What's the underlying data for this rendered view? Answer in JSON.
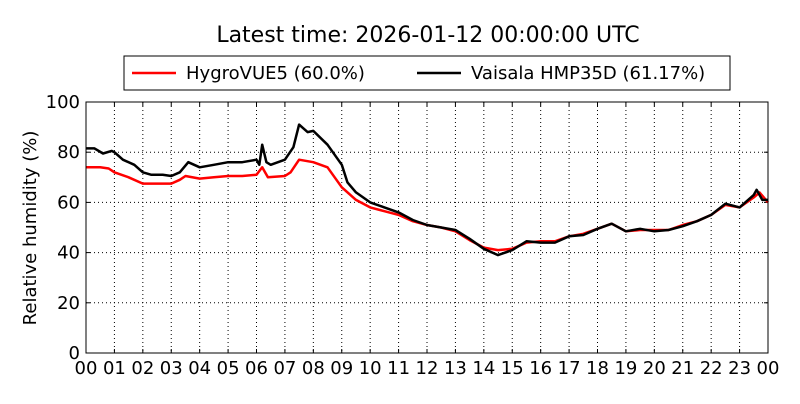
{
  "chart_data": {
    "type": "line",
    "title": "Latest time: 2026-01-12 00:00:00 UTC",
    "xlabel": "",
    "ylabel": "Relative humidity (%)",
    "xlim": [
      0,
      24
    ],
    "ylim": [
      0,
      100
    ],
    "grid": true,
    "legend_placement": "top-center",
    "x_tick_values": [
      0,
      1,
      2,
      3,
      4,
      5,
      6,
      7,
      8,
      9,
      10,
      11,
      12,
      13,
      14,
      15,
      16,
      17,
      18,
      19,
      20,
      21,
      22,
      23,
      24
    ],
    "x_tick_labels": [
      "00",
      "01",
      "02",
      "03",
      "04",
      "05",
      "06",
      "07",
      "08",
      "09",
      "10",
      "11",
      "12",
      "13",
      "14",
      "15",
      "16",
      "17",
      "18",
      "19",
      "20",
      "21",
      "22",
      "23",
      "00"
    ],
    "y_ticks": [
      0,
      20,
      40,
      60,
      80,
      100
    ],
    "series": [
      {
        "name": "HygroVUE5 (60.0%)",
        "color": "#ff0000",
        "x": [
          0,
          0.5,
          0.8,
          1,
          1.5,
          2,
          2.5,
          3,
          3.3,
          3.5,
          4,
          4.5,
          5,
          5.5,
          6,
          6.2,
          6.4,
          7,
          7.2,
          7.5,
          8,
          8.5,
          9,
          9.5,
          10,
          10.5,
          11,
          11.5,
          12,
          12.5,
          13,
          13.5,
          14,
          14.5,
          15,
          15.5,
          16,
          16.5,
          17,
          17.5,
          18,
          18.5,
          19,
          19.5,
          20,
          20.5,
          21,
          21.5,
          22,
          22.5,
          23,
          23.5,
          23.7,
          24
        ],
        "y": [
          74,
          74,
          73.5,
          72,
          70,
          67.5,
          67.5,
          67.5,
          69,
          70.5,
          69.5,
          70,
          70.5,
          70.5,
          71,
          74,
          70,
          70.5,
          72,
          77,
          76,
          74,
          66,
          61,
          58,
          56.5,
          55,
          52.5,
          51,
          50,
          48.5,
          45,
          42,
          41,
          41.5,
          44,
          44.5,
          44.5,
          46.5,
          47.5,
          49.5,
          51.5,
          48.5,
          49,
          49,
          49,
          51,
          52.5,
          55,
          59,
          58,
          62,
          64,
          60
        ]
      },
      {
        "name": "Vaisala HMP35D (61.17%)",
        "color": "#000000",
        "x": [
          0,
          0.3,
          0.6,
          0.9,
          1,
          1.3,
          1.7,
          2,
          2.3,
          2.7,
          3,
          3.3,
          3.6,
          4,
          4.5,
          5,
          5.5,
          6,
          6.1,
          6.2,
          6.35,
          6.5,
          7,
          7.3,
          7.5,
          7.8,
          8,
          8.5,
          9,
          9.2,
          9.5,
          10,
          10.5,
          11,
          11.5,
          12,
          12.5,
          13,
          13.5,
          14,
          14.5,
          15,
          15.5,
          16,
          16.5,
          17,
          17.5,
          18,
          18.5,
          19,
          19.5,
          20,
          20.5,
          21,
          21.5,
          22,
          22.5,
          23,
          23.5,
          23.6,
          23.8,
          24
        ],
        "y": [
          81.5,
          81.5,
          79.5,
          80.5,
          80,
          77,
          75,
          72,
          71,
          71,
          70.5,
          72,
          76,
          74,
          75,
          76,
          76,
          77,
          75,
          83,
          76,
          75,
          77,
          82,
          91,
          88,
          88.5,
          83,
          75,
          68,
          64,
          60,
          58,
          56,
          53,
          51,
          50,
          49,
          45.5,
          41.5,
          39,
          41,
          44.5,
          44,
          44,
          46.5,
          47,
          49.5,
          51.5,
          48.5,
          49.5,
          48.5,
          49,
          50.5,
          52.5,
          55,
          59.5,
          58,
          63,
          65,
          61,
          61
        ]
      }
    ]
  }
}
